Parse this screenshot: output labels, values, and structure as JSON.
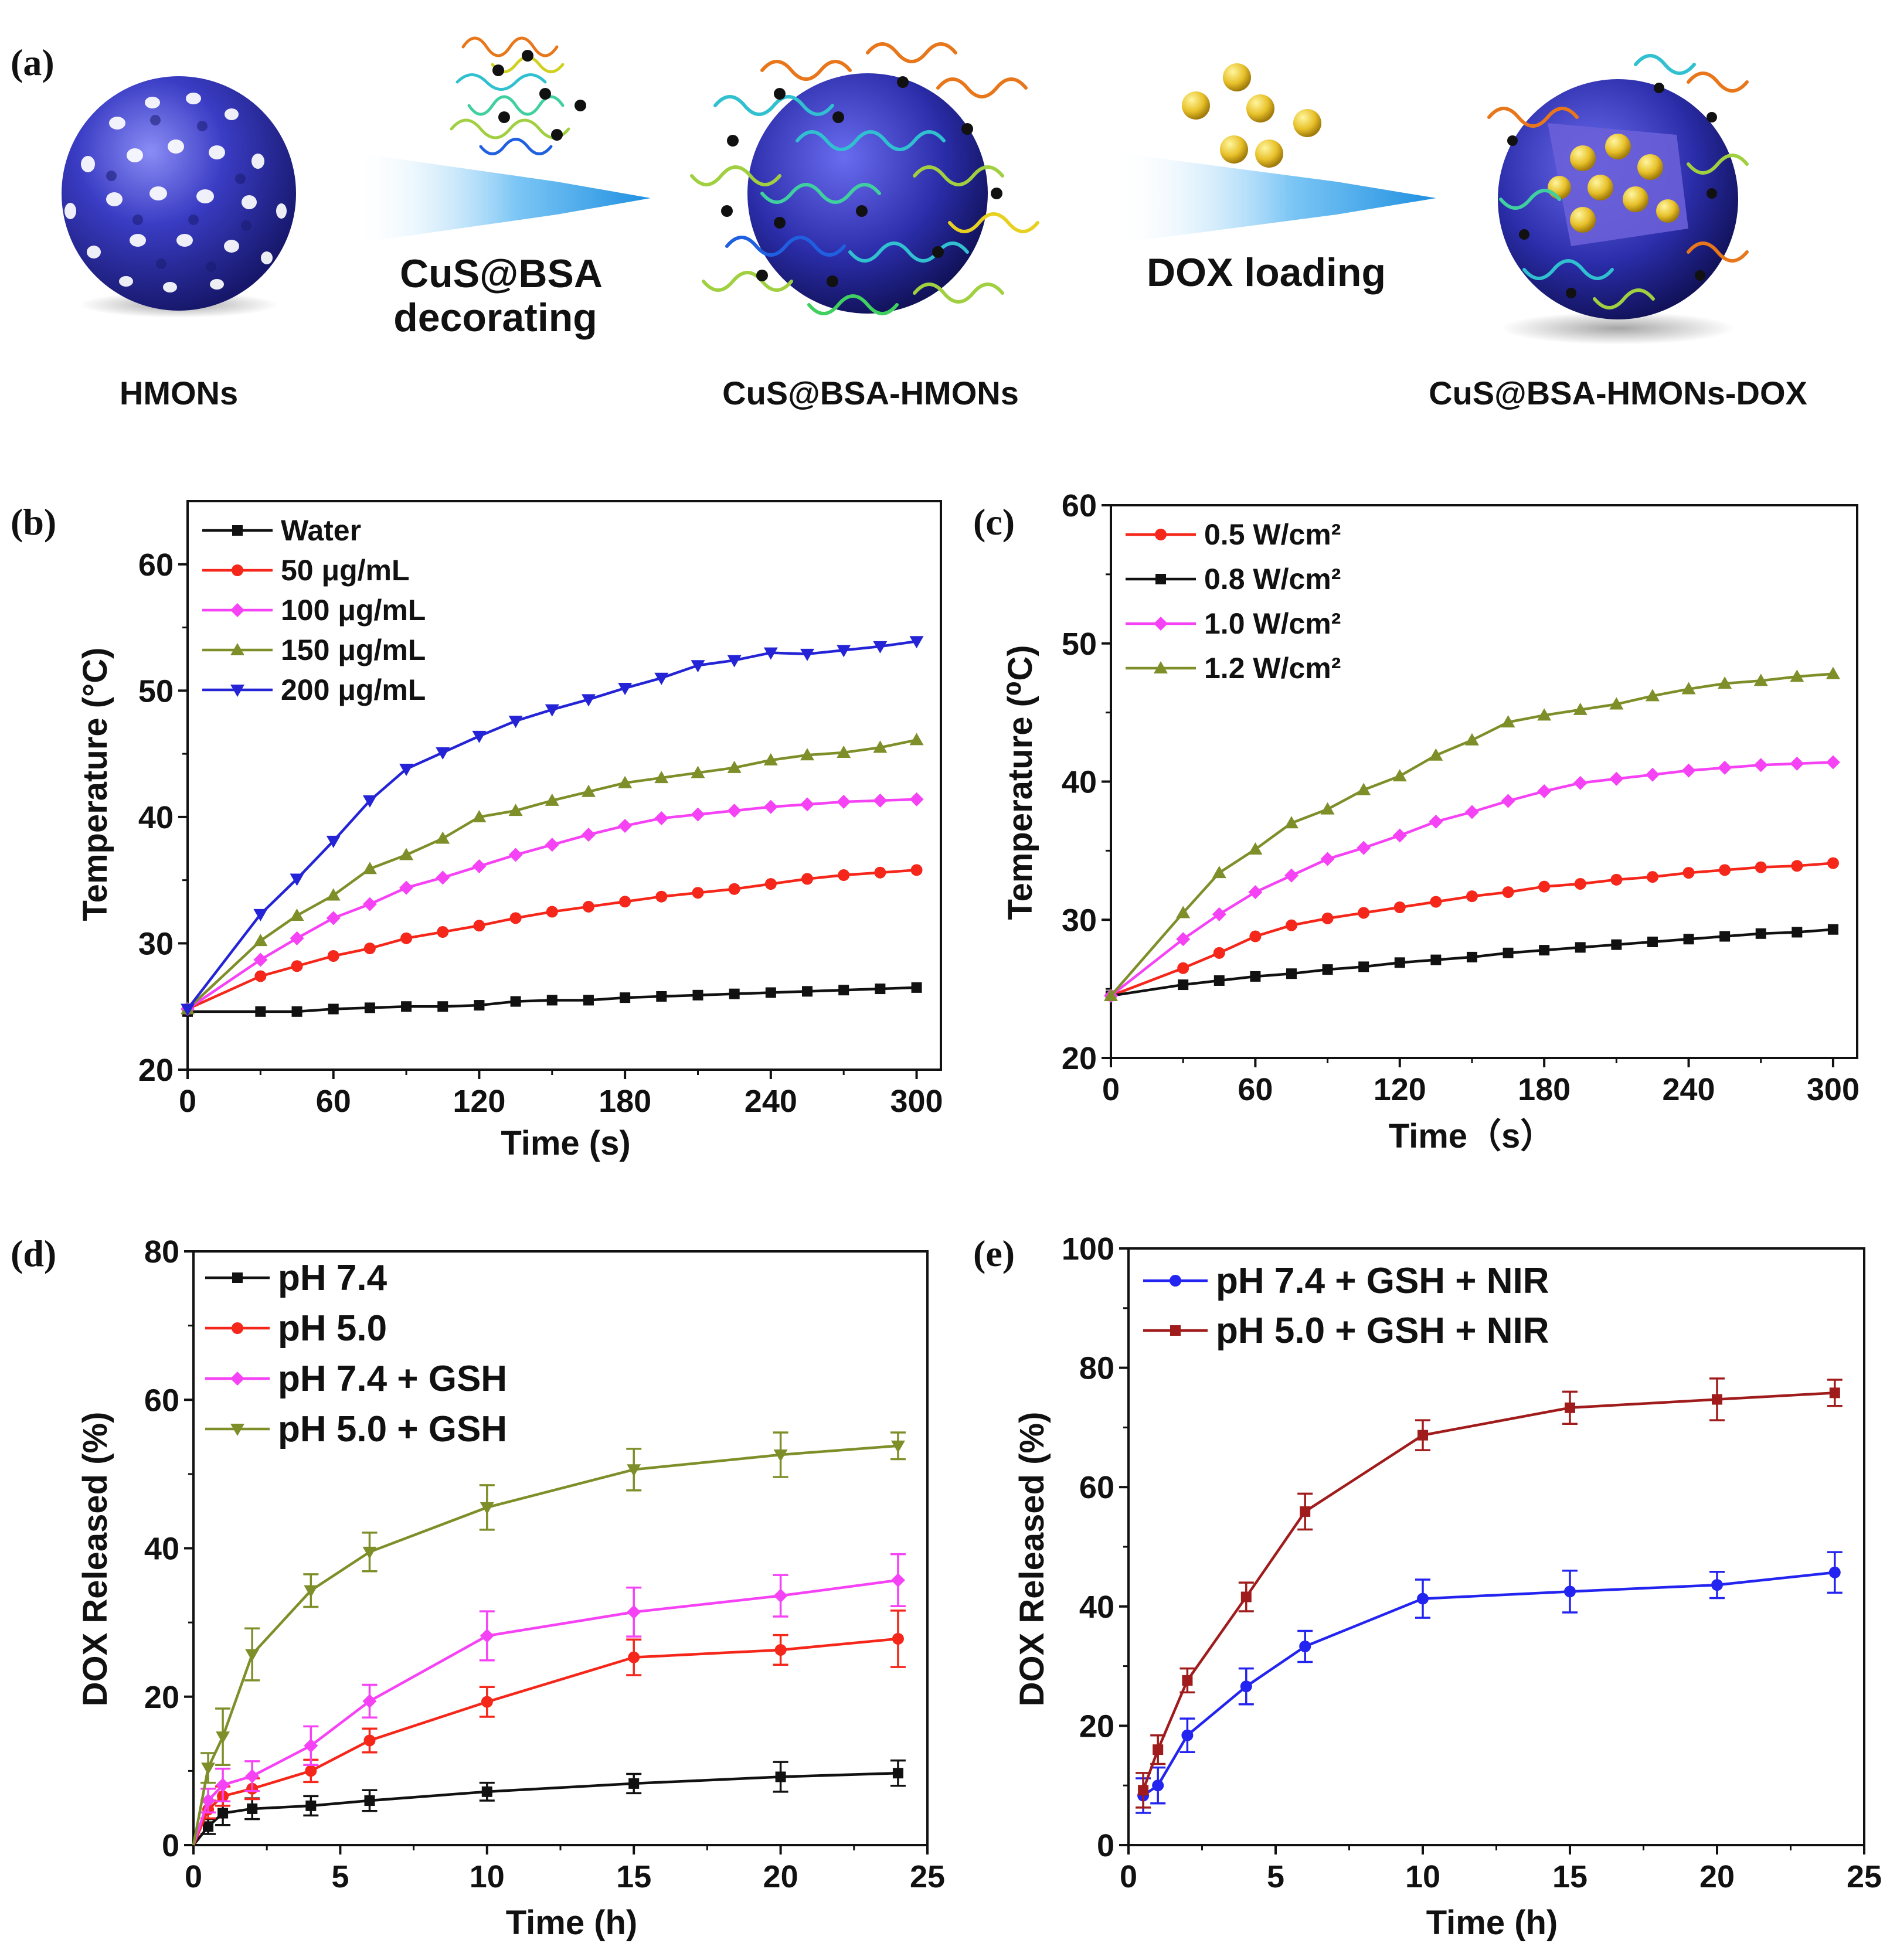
{
  "figure": {
    "panel_labels": [
      "(a)",
      "(b)",
      "(c)",
      "(d)",
      "(e)"
    ]
  },
  "schematic": {
    "nodes": [
      "HMONs",
      "CuS@BSA-HMONs",
      "CuS@BSA-HMONs-DOX"
    ],
    "step1": [
      "CuS@BSA",
      "decorating"
    ],
    "step2": "DOX loading",
    "colors": {
      "sphere": "#3a3cc4",
      "arrow": "#1e8fe0",
      "dox": "#e8c12a"
    }
  },
  "chart_data": [
    {
      "panel": "(b)",
      "type": "line",
      "xlabel": "Time (s)",
      "ylabel": "Temperature  (°C)",
      "xlim": [
        0,
        310
      ],
      "ylim": [
        20,
        65
      ],
      "xticks": [
        0,
        60,
        120,
        180,
        240,
        300
      ],
      "yticks": [
        20,
        30,
        40,
        50,
        60
      ],
      "x": [
        0,
        30,
        45,
        60,
        75,
        90,
        105,
        120,
        135,
        150,
        165,
        180,
        195,
        210,
        225,
        240,
        255,
        270,
        285,
        300
      ],
      "series": [
        {
          "name": "Water",
          "color": "#111111",
          "marker": "square",
          "values": [
            24.6,
            24.6,
            24.6,
            24.8,
            24.9,
            25.0,
            25.0,
            25.1,
            25.4,
            25.5,
            25.5,
            25.7,
            25.8,
            25.9,
            26.0,
            26.1,
            26.2,
            26.3,
            26.4,
            26.5
          ]
        },
        {
          "name": "50 μg/mL",
          "color": "#f5261a",
          "marker": "circle",
          "values": [
            24.8,
            27.4,
            28.2,
            29.0,
            29.6,
            30.4,
            30.9,
            31.4,
            32.0,
            32.5,
            32.9,
            33.3,
            33.7,
            34.0,
            34.3,
            34.7,
            35.1,
            35.4,
            35.6,
            35.8
          ]
        },
        {
          "name": "100 μg/mL",
          "color": "#f542f5",
          "marker": "diamond",
          "values": [
            24.8,
            28.7,
            30.4,
            32.0,
            33.1,
            34.4,
            35.2,
            36.1,
            37.0,
            37.8,
            38.6,
            39.3,
            39.9,
            40.2,
            40.5,
            40.8,
            41.0,
            41.2,
            41.3,
            41.4
          ]
        },
        {
          "name": "150 μg/mL",
          "color": "#7e8f2a",
          "marker": "triangle-up",
          "values": [
            24.8,
            30.2,
            32.2,
            33.8,
            35.9,
            37.0,
            38.3,
            40.0,
            40.5,
            41.3,
            42.0,
            42.7,
            43.1,
            43.5,
            43.9,
            44.5,
            44.9,
            45.1,
            45.5,
            46.1
          ]
        },
        {
          "name": "200 μg/mL",
          "color": "#2424d6",
          "marker": "triangle-down",
          "values": [
            24.8,
            32.3,
            35.1,
            38.1,
            41.3,
            43.8,
            45.1,
            46.4,
            47.6,
            48.5,
            49.3,
            50.2,
            51.0,
            52.0,
            52.4,
            53.0,
            52.9,
            53.2,
            53.5,
            53.9
          ]
        }
      ]
    },
    {
      "panel": "(c)",
      "type": "line",
      "xlabel": "Time（s）",
      "ylabel": "Temperature (⁰C)",
      "xlim": [
        0,
        310
      ],
      "ylim": [
        20,
        60
      ],
      "xticks": [
        0,
        60,
        120,
        180,
        240,
        300
      ],
      "yticks": [
        20,
        30,
        40,
        50,
        60
      ],
      "x": [
        0,
        30,
        45,
        60,
        75,
        90,
        105,
        120,
        135,
        150,
        165,
        180,
        195,
        210,
        225,
        240,
        255,
        270,
        285,
        300
      ],
      "series": [
        {
          "name": "0.5 W/cm²",
          "color": "#f5261a",
          "marker": "circle",
          "values": [
            24.5,
            26.5,
            27.6,
            28.8,
            29.6,
            30.1,
            30.5,
            30.9,
            31.3,
            31.7,
            32.0,
            32.4,
            32.6,
            32.9,
            33.1,
            33.4,
            33.6,
            33.8,
            33.9,
            34.1
          ]
        },
        {
          "name": "0.8 W/cm²",
          "color": "#111111",
          "marker": "square",
          "values": [
            24.5,
            25.3,
            25.6,
            25.9,
            26.1,
            26.4,
            26.6,
            26.9,
            27.1,
            27.3,
            27.6,
            27.8,
            28.0,
            28.2,
            28.4,
            28.6,
            28.8,
            29.0,
            29.1,
            29.3
          ]
        },
        {
          "name": "1.0 W/cm²",
          "color": "#f542f5",
          "marker": "diamond",
          "values": [
            24.5,
            28.6,
            30.4,
            32.0,
            33.2,
            34.4,
            35.2,
            36.1,
            37.1,
            37.8,
            38.6,
            39.3,
            39.9,
            40.2,
            40.5,
            40.8,
            41.0,
            41.2,
            41.3,
            41.4
          ]
        },
        {
          "name": "1.2 W/cm²",
          "color": "#7e8f2a",
          "marker": "triangle-up",
          "values": [
            24.5,
            30.5,
            33.4,
            35.1,
            37.0,
            38.0,
            39.4,
            40.4,
            41.9,
            43.0,
            44.3,
            44.8,
            45.2,
            45.6,
            46.2,
            46.7,
            47.1,
            47.3,
            47.6,
            47.8
          ]
        }
      ]
    },
    {
      "panel": "(d)",
      "type": "line",
      "xlabel": "Time (h)",
      "ylabel": "DOX Released (%)",
      "xlim": [
        0,
        25
      ],
      "ylim": [
        0,
        80
      ],
      "xticks": [
        0,
        5,
        10,
        15,
        20,
        25
      ],
      "yticks": [
        0,
        20,
        40,
        60,
        80
      ],
      "x": [
        0,
        0.5,
        1,
        2,
        4,
        6,
        10,
        15,
        20,
        24
      ],
      "series": [
        {
          "name": "pH 7.4",
          "color": "#111111",
          "marker": "square",
          "values": [
            0,
            2.5,
            4.3,
            4.9,
            5.3,
            6.0,
            7.2,
            8.3,
            9.2,
            9.7
          ],
          "errors": [
            0,
            1.0,
            1.6,
            1.4,
            1.3,
            1.4,
            1.2,
            1.3,
            2.0,
            1.7
          ]
        },
        {
          "name": "pH 5.0",
          "color": "#f5261a",
          "marker": "circle",
          "values": [
            0,
            4.8,
            6.6,
            7.6,
            10.0,
            14.1,
            19.3,
            25.3,
            26.3,
            27.8
          ],
          "errors": [
            0,
            1.2,
            1.3,
            1.4,
            1.5,
            1.6,
            2.0,
            2.4,
            2.0,
            3.8
          ]
        },
        {
          "name": "pH 7.4 + GSH",
          "color": "#f542f5",
          "marker": "diamond",
          "values": [
            0,
            6.0,
            8.1,
            9.3,
            13.4,
            19.4,
            28.2,
            31.4,
            33.6,
            35.7
          ],
          "errors": [
            0,
            1.6,
            2.2,
            2.0,
            2.6,
            2.2,
            3.3,
            3.3,
            2.8,
            3.5
          ]
        },
        {
          "name": "pH 5.0 + GSH",
          "color": "#7e8f2a",
          "marker": "triangle-down",
          "values": [
            0,
            10.4,
            14.6,
            25.7,
            34.3,
            39.5,
            45.5,
            50.6,
            52.6,
            53.8
          ],
          "errors": [
            0,
            2.0,
            3.8,
            3.5,
            2.2,
            2.6,
            3.0,
            2.8,
            3.0,
            1.8
          ]
        }
      ]
    },
    {
      "panel": "(e)",
      "type": "line",
      "xlabel": "Time (h)",
      "ylabel": "DOX Released (%)",
      "xlim": [
        0,
        25
      ],
      "ylim": [
        0,
        100
      ],
      "xticks": [
        0,
        5,
        10,
        15,
        20,
        25
      ],
      "yticks": [
        0,
        20,
        40,
        60,
        80,
        100
      ],
      "x": [
        0.5,
        1,
        2,
        4,
        6,
        10,
        15,
        20,
        24
      ],
      "series": [
        {
          "name": "pH 7.4 + GSH + NIR",
          "color": "#2424f0",
          "marker": "circle",
          "values": [
            8.3,
            10.0,
            18.4,
            26.6,
            33.3,
            41.3,
            42.5,
            43.6,
            45.7
          ],
          "errors": [
            2.9,
            3.0,
            2.8,
            3.0,
            2.6,
            3.2,
            3.5,
            2.2,
            3.4
          ]
        },
        {
          "name": "pH 5.0 + GSH + NIR",
          "color": "#a01c1c",
          "marker": "square",
          "values": [
            9.2,
            16.0,
            27.6,
            41.6,
            55.9,
            68.7,
            73.3,
            74.7,
            75.8
          ],
          "errors": [
            2.9,
            2.4,
            2.0,
            2.4,
            3.0,
            2.5,
            2.7,
            3.5,
            2.2
          ]
        }
      ]
    }
  ]
}
